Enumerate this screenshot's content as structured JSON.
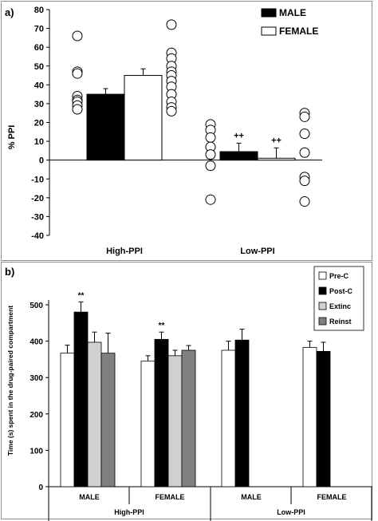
{
  "chart_data": [
    {
      "panel_label": "a)",
      "type": "bar",
      "ylabel": "% PPI",
      "ylim": [
        -40,
        80
      ],
      "yticks": [
        -40,
        -30,
        -20,
        -10,
        0,
        10,
        20,
        30,
        40,
        50,
        60,
        70,
        80
      ],
      "categories": [
        "High-PPI",
        "Low-PPI"
      ],
      "legend": {
        "position": "top-right"
      },
      "series": [
        {
          "name": "MALE",
          "color": "#000000",
          "values": [
            35,
            4.5
          ],
          "errors": [
            3,
            4.5
          ],
          "annotations": [
            "",
            "++"
          ],
          "points": [
            [
              66,
              47,
              46,
              34,
              32,
              31,
              29,
              27
            ],
            [
              19,
              16,
              12,
              7,
              3,
              -3,
              -21
            ]
          ]
        },
        {
          "name": "FEMALE",
          "color": "#ffffff",
          "values": [
            45,
            1
          ],
          "errors": [
            3.5,
            5.5
          ],
          "annotations": [
            "",
            "++"
          ],
          "points": [
            [
              72,
              57,
              54,
              50,
              47,
              45,
              42,
              39,
              35,
              31,
              28,
              26
            ],
            [
              25,
              23,
              14,
              4,
              -9,
              -11,
              -22
            ]
          ]
        }
      ]
    },
    {
      "panel_label": "b)",
      "type": "bar",
      "ylabel": "Time (s) spent in the drug-paired compartment",
      "ylim": [
        0,
        500
      ],
      "yticks": [
        0,
        100,
        200,
        300,
        400,
        500
      ],
      "groups": [
        {
          "label": "High-PPI",
          "categories": [
            "MALE",
            "FEMALE"
          ]
        },
        {
          "label": "Low-PPI",
          "categories": [
            "MALE",
            "FEMALE"
          ]
        }
      ],
      "legend": {
        "position": "top-right"
      },
      "series": [
        {
          "name": "Pre-C",
          "color": "#ffffff",
          "values": [
            367,
            345,
            375,
            383
          ],
          "errors": [
            22,
            15,
            25,
            17
          ],
          "annotations": [
            "",
            "",
            "",
            ""
          ]
        },
        {
          "name": "Post-C",
          "color": "#000000",
          "values": [
            480,
            405,
            403,
            372
          ],
          "errors": [
            28,
            20,
            30,
            25
          ],
          "annotations": [
            "**",
            "**",
            "",
            ""
          ]
        },
        {
          "name": "Extinc",
          "color": "#d0d0d0",
          "values": [
            397,
            360,
            null,
            null
          ],
          "errors": [
            28,
            15,
            null,
            null
          ],
          "annotations": [
            "",
            "",
            "",
            ""
          ]
        },
        {
          "name": "Reinst",
          "color": "#808080",
          "values": [
            367,
            375,
            null,
            null
          ],
          "errors": [
            55,
            13,
            null,
            null
          ],
          "annotations": [
            "",
            "",
            "",
            ""
          ]
        }
      ]
    }
  ]
}
